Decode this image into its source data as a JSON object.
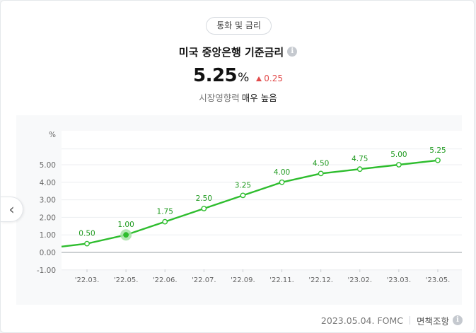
{
  "header": {
    "category": "통화 및 금리",
    "title": "미국 중앙은행 기준금리",
    "info_icon": "info-icon"
  },
  "summary": {
    "value": "5.25",
    "unit": "%",
    "change": "0.25",
    "change_direction": "up",
    "impact_label": "시장영향력",
    "impact_value": "매우 높음"
  },
  "footer": {
    "date_source": "2023.05.04. FOMC",
    "disclaimer": "면책조항"
  },
  "nav": {
    "prev_icon": "chevron-left-icon"
  },
  "colors": {
    "line": "#2ebd2e",
    "label": "#1f9a1f",
    "down": "#e24b4b"
  },
  "chart_data": {
    "type": "line",
    "ylabel": "%",
    "ylim": [
      -1.0,
      6.0
    ],
    "yticks": [
      "-1.00",
      "0.00",
      "1.00",
      "2.00",
      "3.00",
      "4.00",
      "5.00"
    ],
    "categories": [
      "'22.03.",
      "'22.05.",
      "'22.06.",
      "'22.07.",
      "'22.09.",
      "'22.11.",
      "'22.12.",
      "'23.02.",
      "'23.03.",
      "'23.05."
    ],
    "values": [
      0.5,
      1.0,
      1.75,
      2.5,
      3.25,
      4.0,
      4.5,
      4.75,
      5.0,
      5.25
    ],
    "value_labels": [
      "0.50",
      "1.00",
      "1.75",
      "2.50",
      "3.25",
      "4.00",
      "4.50",
      "4.75",
      "5.00",
      "5.25"
    ],
    "start_value": 0.33,
    "highlight_index": 1,
    "grid": true
  }
}
